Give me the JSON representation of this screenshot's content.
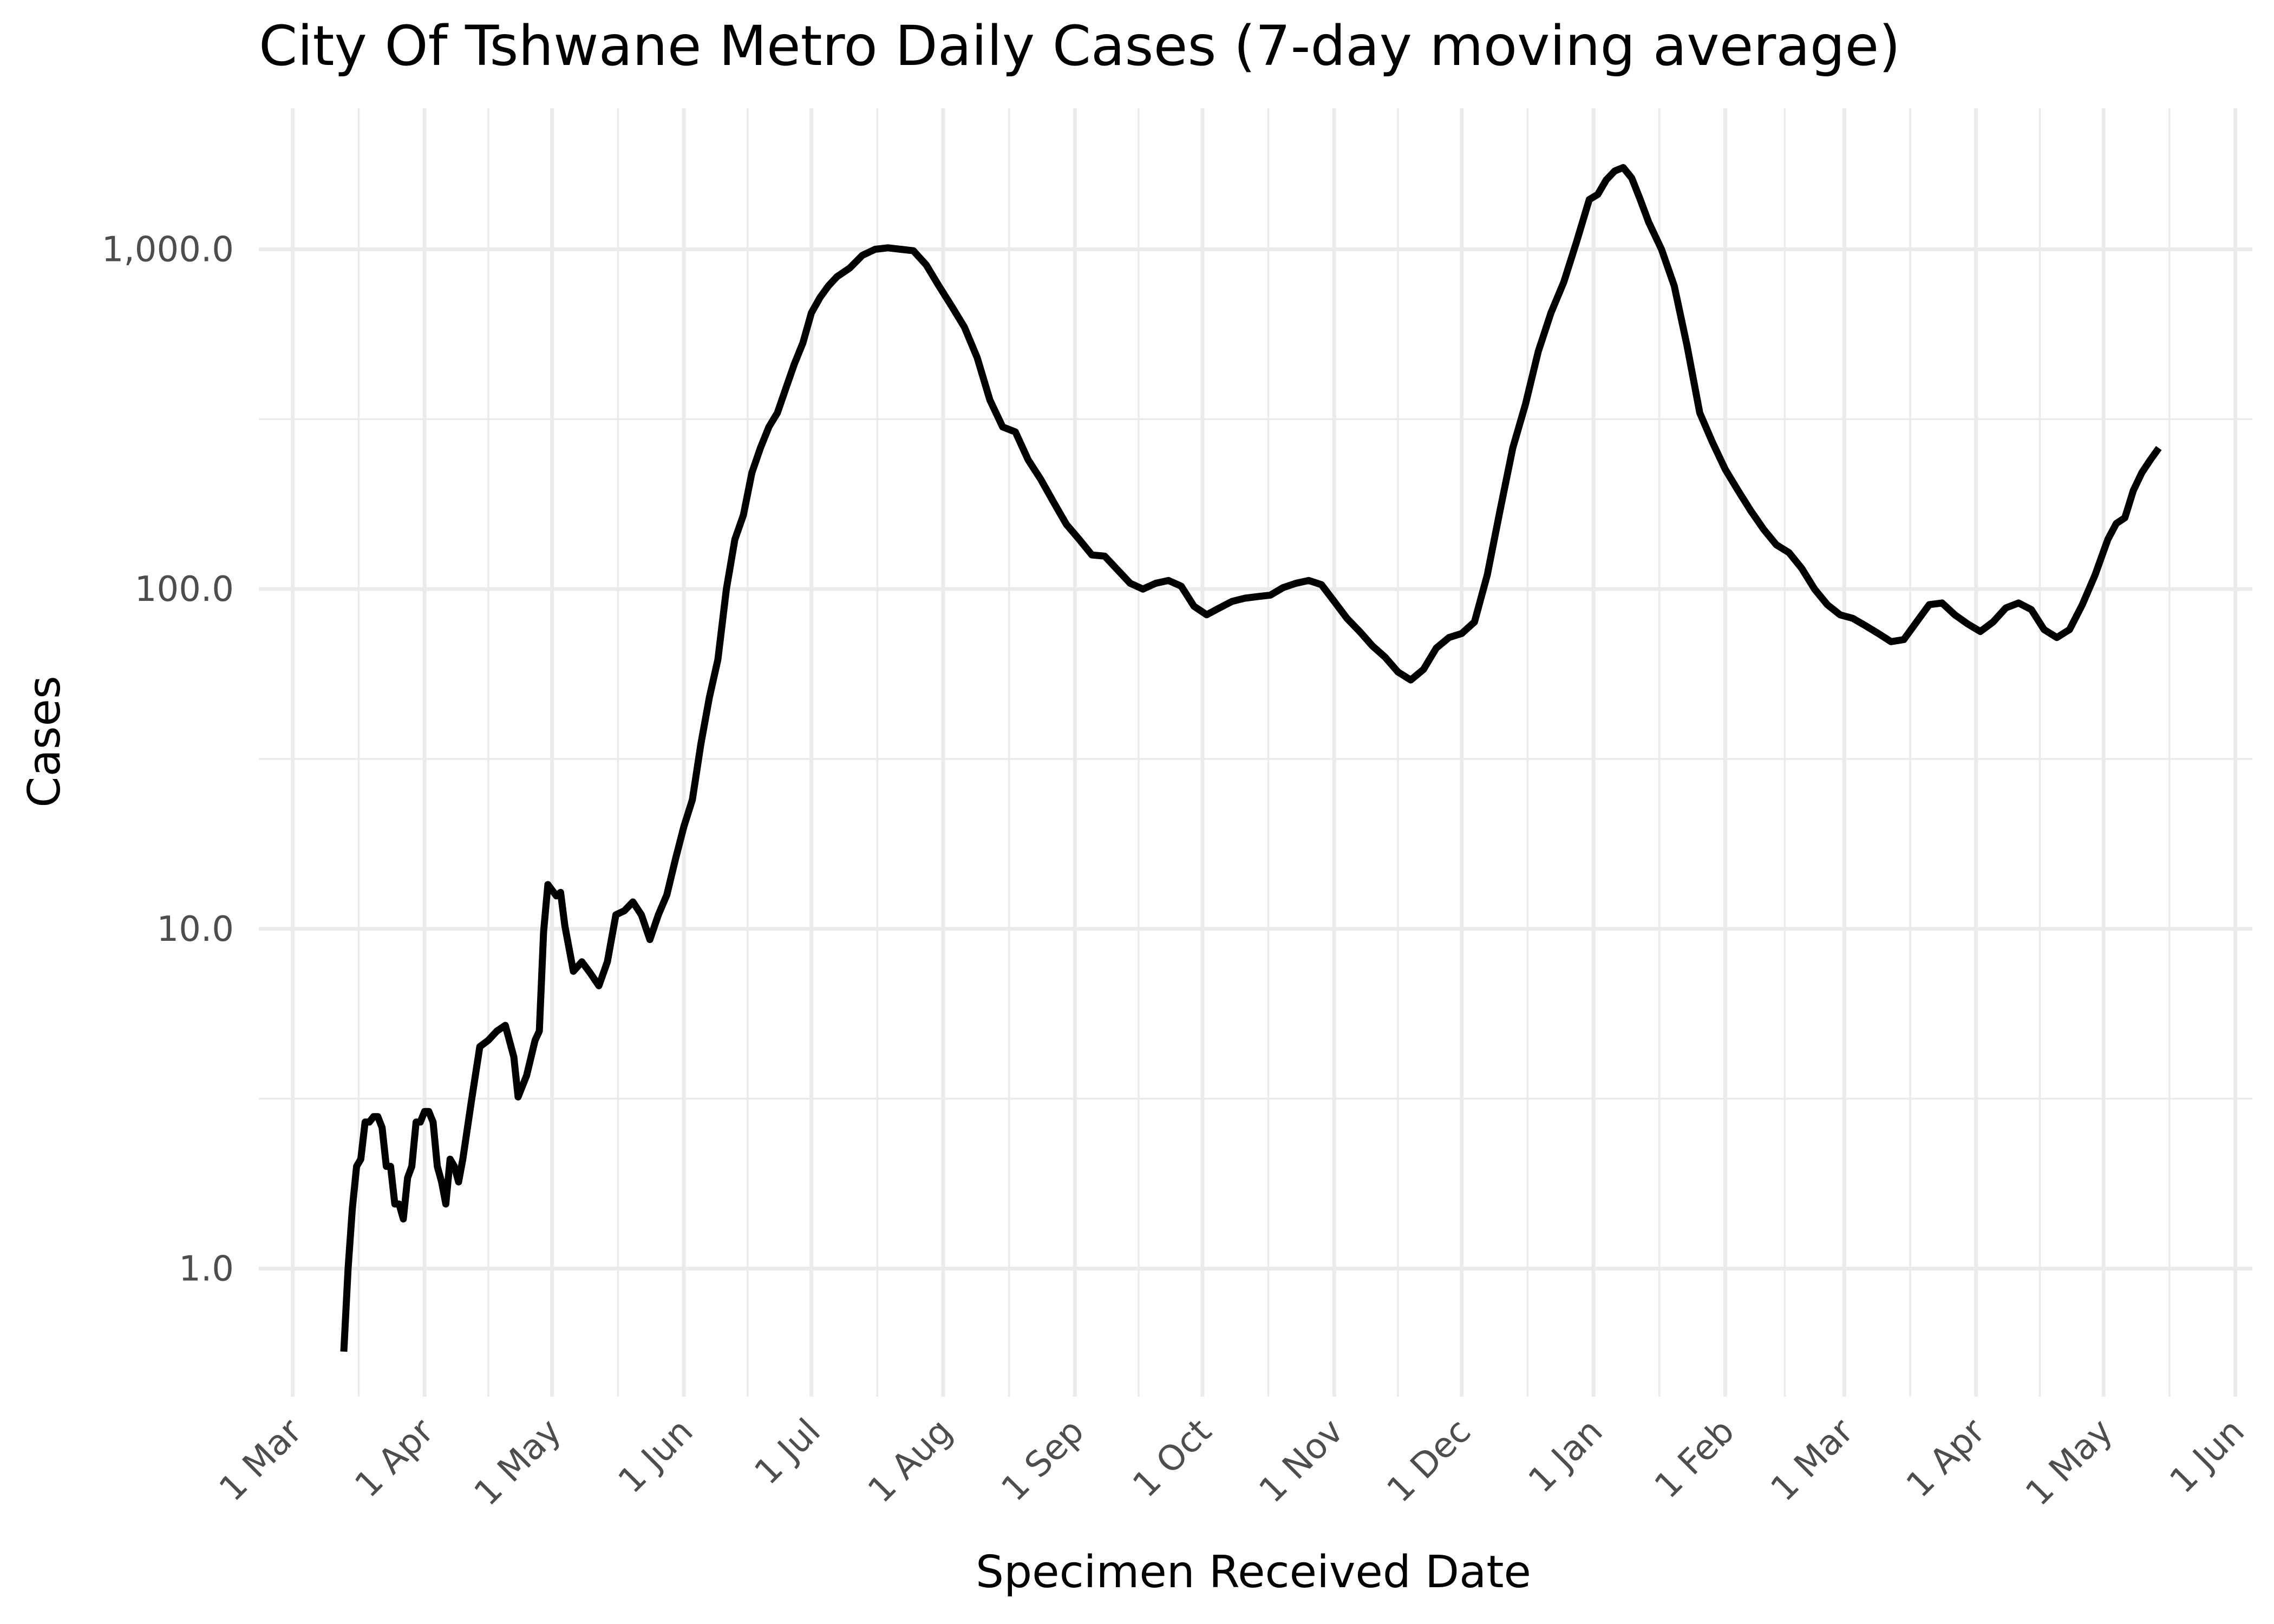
{
  "chart_data": {
    "type": "line",
    "title": "City Of Tshwane Metro Daily Cases (7-day moving average)",
    "xlabel": "Specimen Received Date",
    "ylabel": "Cases",
    "y_scale": "log10",
    "ylim": [
      0.42,
      2600
    ],
    "xlim": [
      "2020-02-22",
      "2021-06-05"
    ],
    "grid": true,
    "legend": "none",
    "line_color": "#000000",
    "x_ticks": [
      {
        "date": "2020-03-01",
        "label": "1 Mar"
      },
      {
        "date": "2020-04-01",
        "label": "1 Apr"
      },
      {
        "date": "2020-05-01",
        "label": "1 May"
      },
      {
        "date": "2020-06-01",
        "label": "1 Jun"
      },
      {
        "date": "2020-07-01",
        "label": "1 Jul"
      },
      {
        "date": "2020-08-01",
        "label": "1 Aug"
      },
      {
        "date": "2020-09-01",
        "label": "1 Sep"
      },
      {
        "date": "2020-10-01",
        "label": "1 Oct"
      },
      {
        "date": "2020-11-01",
        "label": "1 Nov"
      },
      {
        "date": "2020-12-01",
        "label": "1 Dec"
      },
      {
        "date": "2021-01-01",
        "label": "1 Jan"
      },
      {
        "date": "2021-02-01",
        "label": "1 Feb"
      },
      {
        "date": "2021-03-01",
        "label": "1 Mar"
      },
      {
        "date": "2021-04-01",
        "label": "1 Apr"
      },
      {
        "date": "2021-05-01",
        "label": "1 May"
      },
      {
        "date": "2021-06-01",
        "label": "1 Jun"
      }
    ],
    "y_ticks": [
      {
        "value": 1,
        "label": "1.0"
      },
      {
        "value": 10,
        "label": "10.0"
      },
      {
        "value": 100,
        "label": "100.0"
      },
      {
        "value": 1000,
        "label": "1,000.0"
      }
    ],
    "y_minor_ticks": [
      3.1623,
      31.623,
      316.23
    ],
    "series": [
      {
        "x": [
          "2020-03-13",
          "2020-03-14",
          "2020-03-15",
          "2020-03-16",
          "2020-03-17",
          "2020-03-18",
          "2020-03-19",
          "2020-03-20",
          "2020-03-21",
          "2020-03-22",
          "2020-03-23",
          "2020-03-24",
          "2020-03-25",
          "2020-03-26",
          "2020-03-27",
          "2020-03-28",
          "2020-03-29",
          "2020-03-30",
          "2020-03-31",
          "2020-04-01",
          "2020-04-02",
          "2020-04-03",
          "2020-04-04",
          "2020-04-05",
          "2020-04-06",
          "2020-04-07",
          "2020-04-08",
          "2020-04-09",
          "2020-04-10",
          "2020-04-12",
          "2020-04-14",
          "2020-04-16",
          "2020-04-18",
          "2020-04-20",
          "2020-04-22",
          "2020-04-23",
          "2020-04-25",
          "2020-04-27",
          "2020-04-28",
          "2020-04-29",
          "2020-04-30",
          "2020-05-02",
          "2020-05-03",
          "2020-05-04",
          "2020-05-06",
          "2020-05-08",
          "2020-05-10",
          "2020-05-12",
          "2020-05-14",
          "2020-05-16",
          "2020-05-18",
          "2020-05-20",
          "2020-05-22",
          "2020-05-24",
          "2020-05-26",
          "2020-05-28",
          "2020-05-30",
          "2020-06-01",
          "2020-06-03",
          "2020-06-05",
          "2020-06-07",
          "2020-06-09",
          "2020-06-11",
          "2020-06-13",
          "2020-06-15",
          "2020-06-17",
          "2020-06-19",
          "2020-06-21",
          "2020-06-23",
          "2020-06-25",
          "2020-06-27",
          "2020-06-29",
          "2020-07-01",
          "2020-07-03",
          "2020-07-05",
          "2020-07-07",
          "2020-07-10",
          "2020-07-13",
          "2020-07-16",
          "2020-07-19",
          "2020-07-22",
          "2020-07-25",
          "2020-07-28",
          "2020-07-31",
          "2020-08-03",
          "2020-08-06",
          "2020-08-09",
          "2020-08-12",
          "2020-08-15",
          "2020-08-18",
          "2020-08-21",
          "2020-08-24",
          "2020-08-27",
          "2020-08-30",
          "2020-09-02",
          "2020-09-05",
          "2020-09-08",
          "2020-09-11",
          "2020-09-14",
          "2020-09-17",
          "2020-09-20",
          "2020-09-23",
          "2020-09-26",
          "2020-09-29",
          "2020-10-02",
          "2020-10-05",
          "2020-10-08",
          "2020-10-11",
          "2020-10-14",
          "2020-10-17",
          "2020-10-20",
          "2020-10-23",
          "2020-10-26",
          "2020-10-29",
          "2020-11-01",
          "2020-11-04",
          "2020-11-07",
          "2020-11-10",
          "2020-11-13",
          "2020-11-16",
          "2020-11-19",
          "2020-11-22",
          "2020-11-25",
          "2020-11-28",
          "2020-12-01",
          "2020-12-04",
          "2020-12-07",
          "2020-12-10",
          "2020-12-13",
          "2020-12-16",
          "2020-12-19",
          "2020-12-22",
          "2020-12-25",
          "2020-12-28",
          "2020-12-31",
          "2021-01-02",
          "2021-01-04",
          "2021-01-06",
          "2021-01-08",
          "2021-01-10",
          "2021-01-12",
          "2021-01-14",
          "2021-01-17",
          "2021-01-20",
          "2021-01-23",
          "2021-01-26",
          "2021-01-29",
          "2021-02-01",
          "2021-02-04",
          "2021-02-07",
          "2021-02-10",
          "2021-02-13",
          "2021-02-16",
          "2021-02-19",
          "2021-02-22",
          "2021-02-25",
          "2021-02-28",
          "2021-03-03",
          "2021-03-06",
          "2021-03-09",
          "2021-03-12",
          "2021-03-15",
          "2021-03-18",
          "2021-03-21",
          "2021-03-24",
          "2021-03-27",
          "2021-03-30",
          "2021-04-02",
          "2021-04-05",
          "2021-04-08",
          "2021-04-11",
          "2021-04-14",
          "2021-04-17",
          "2021-04-20",
          "2021-04-23",
          "2021-04-26",
          "2021-04-29",
          "2021-05-02",
          "2021-05-04",
          "2021-05-06",
          "2021-05-08",
          "2021-05-10",
          "2021-05-12",
          "2021-05-14"
        ],
        "y": [
          0.57,
          1.0,
          1.5,
          2.0,
          2.1,
          2.7,
          2.7,
          2.8,
          2.8,
          2.6,
          2.0,
          2.0,
          1.55,
          1.55,
          1.4,
          1.85,
          2.0,
          2.7,
          2.7,
          2.9,
          2.9,
          2.7,
          2.0,
          1.8,
          1.55,
          2.1,
          2.0,
          1.8,
          2.1,
          3.1,
          4.5,
          4.7,
          5.0,
          5.2,
          4.2,
          3.2,
          3.7,
          4.7,
          5.0,
          9.8,
          13.5,
          12.5,
          12.8,
          10.2,
          7.5,
          8.0,
          7.4,
          6.8,
          8.0,
          11.0,
          11.3,
          12.0,
          11.0,
          9.3,
          11.0,
          12.6,
          16.0,
          20.0,
          24.0,
          35.0,
          48.0,
          62.0,
          100.0,
          140.0,
          165.0,
          220.0,
          260.0,
          300.0,
          330.0,
          390.0,
          460.0,
          530.0,
          650.0,
          720.0,
          780.0,
          830.0,
          880.0,
          960.0,
          1000.0,
          1010.0,
          1000.0,
          990.0,
          900.0,
          780.0,
          680.0,
          590.0,
          480.0,
          360.0,
          300.0,
          290.0,
          240.0,
          210.0,
          180.0,
          155.0,
          140.0,
          126.0,
          125.0,
          114.0,
          104.0,
          100.0,
          104.0,
          106.0,
          102.0,
          89.0,
          84.0,
          88.0,
          92.0,
          94.0,
          95.0,
          96.0,
          101.0,
          104.0,
          106.0,
          103.0,
          92.0,
          82.0,
          75.0,
          68.0,
          63.0,
          57.0,
          54.0,
          58.0,
          67.0,
          72.0,
          74.0,
          80.0,
          110.0,
          170.0,
          260.0,
          350.0,
          500.0,
          650.0,
          800.0,
          1050.0,
          1400.0,
          1450.0,
          1600.0,
          1700.0,
          1740.0,
          1620.0,
          1400.0,
          1200.0,
          1000.0,
          780.0,
          520.0,
          330.0,
          270.0,
          225.0,
          195.0,
          170.0,
          150.0,
          135.0,
          128.0,
          115.0,
          100.0,
          90.0,
          84.0,
          82.0,
          78.0,
          74.0,
          70.0,
          71.0,
          80.0,
          90.0,
          91.0,
          84.0,
          79.0,
          75.0,
          80.0,
          88.0,
          91.0,
          87.0,
          76.0,
          72.0,
          76.0,
          90.0,
          110.0,
          140.0,
          156.0,
          162.0,
          195.0,
          220.0,
          240.0,
          260.0
        ]
      }
    ]
  }
}
